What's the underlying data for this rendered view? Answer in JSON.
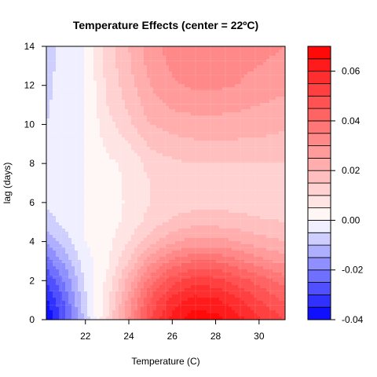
{
  "chart_data": {
    "type": "heatmap",
    "subtype": "filled-contour",
    "title": "Temperature Effects (center = 22ºC)",
    "xlabel": "Temperature (C)",
    "ylabel": "lag (days)",
    "xlim": [
      20.2,
      31.2
    ],
    "ylim": [
      0,
      14
    ],
    "x_ticks": [
      22,
      24,
      26,
      28,
      30
    ],
    "x_tick_labels": [
      "22",
      "24",
      "26",
      "28",
      "30"
    ],
    "y_ticks": [
      0,
      2,
      4,
      6,
      8,
      10,
      12,
      14
    ],
    "y_tick_labels": [
      "0",
      "2",
      "4",
      "6",
      "8",
      "10",
      "12",
      "14"
    ],
    "grid_x": [
      20.2,
      21,
      22,
      23,
      24,
      25,
      26,
      27,
      28,
      29,
      30,
      31.2
    ],
    "grid_y": [
      0,
      1,
      2,
      3,
      4,
      5,
      6,
      7,
      8,
      9,
      10,
      11,
      12,
      13,
      14
    ],
    "z": [
      [
        -0.04,
        -0.028,
        -0.008,
        0.01,
        0.03,
        0.05,
        0.062,
        0.068,
        0.067,
        0.062,
        0.056,
        0.05
      ],
      [
        -0.036,
        -0.025,
        -0.006,
        0.008,
        0.027,
        0.046,
        0.057,
        0.062,
        0.061,
        0.056,
        0.05,
        0.044
      ],
      [
        -0.03,
        -0.02,
        -0.004,
        0.006,
        0.022,
        0.038,
        0.048,
        0.053,
        0.052,
        0.048,
        0.043,
        0.038
      ],
      [
        -0.022,
        -0.014,
        -0.002,
        0.004,
        0.015,
        0.028,
        0.036,
        0.04,
        0.04,
        0.036,
        0.032,
        0.028
      ],
      [
        -0.014,
        -0.008,
        0.0,
        0.003,
        0.01,
        0.018,
        0.024,
        0.027,
        0.027,
        0.025,
        0.022,
        0.02
      ],
      [
        -0.008,
        -0.003,
        0.0,
        0.002,
        0.007,
        0.012,
        0.016,
        0.018,
        0.018,
        0.017,
        0.016,
        0.015
      ],
      [
        -0.004,
        -0.001,
        0.0,
        0.002,
        0.006,
        0.01,
        0.012,
        0.013,
        0.013,
        0.013,
        0.012,
        0.011
      ],
      [
        -0.003,
        -0.001,
        0.0,
        0.003,
        0.006,
        0.01,
        0.011,
        0.012,
        0.012,
        0.012,
        0.012,
        0.012
      ],
      [
        -0.003,
        -0.001,
        0.0,
        0.004,
        0.006,
        0.012,
        0.014,
        0.015,
        0.015,
        0.015,
        0.015,
        0.015
      ],
      [
        -0.004,
        -0.002,
        0.0,
        0.006,
        0.01,
        0.016,
        0.018,
        0.019,
        0.019,
        0.019,
        0.019,
        0.018
      ],
      [
        -0.005,
        -0.002,
        0.0,
        0.008,
        0.014,
        0.02,
        0.022,
        0.023,
        0.023,
        0.023,
        0.022,
        0.021
      ],
      [
        -0.006,
        -0.002,
        0.0,
        0.01,
        0.016,
        0.023,
        0.026,
        0.027,
        0.027,
        0.026,
        0.025,
        0.024
      ],
      [
        -0.006,
        -0.003,
        0.0,
        0.011,
        0.018,
        0.025,
        0.029,
        0.031,
        0.031,
        0.03,
        0.027,
        0.026
      ],
      [
        -0.007,
        -0.003,
        0.0,
        0.012,
        0.019,
        0.027,
        0.031,
        0.033,
        0.034,
        0.032,
        0.03,
        0.028
      ],
      [
        -0.008,
        -0.003,
        0.0,
        0.012,
        0.02,
        0.028,
        0.032,
        0.034,
        0.035,
        0.034,
        0.032,
        0.03
      ]
    ],
    "levels": [
      -0.04,
      -0.035,
      -0.03,
      -0.025,
      -0.02,
      -0.015,
      -0.01,
      -0.005,
      0.0,
      0.005,
      0.01,
      0.015,
      0.02,
      0.025,
      0.03,
      0.035,
      0.04,
      0.045,
      0.05,
      0.055,
      0.06,
      0.065,
      0.07
    ],
    "colors": {
      "neg_full": "#0000FF",
      "pos_full": "#FF0000",
      "zero": "#FFFFFF"
    },
    "legend": {
      "placement": "right",
      "ticks": [
        -0.04,
        -0.02,
        0.0,
        0.02,
        0.04,
        0.06
      ],
      "tick_labels": [
        "-0.04",
        "-0.02",
        "0.00",
        "0.02",
        "0.04",
        "0.06"
      ]
    }
  }
}
